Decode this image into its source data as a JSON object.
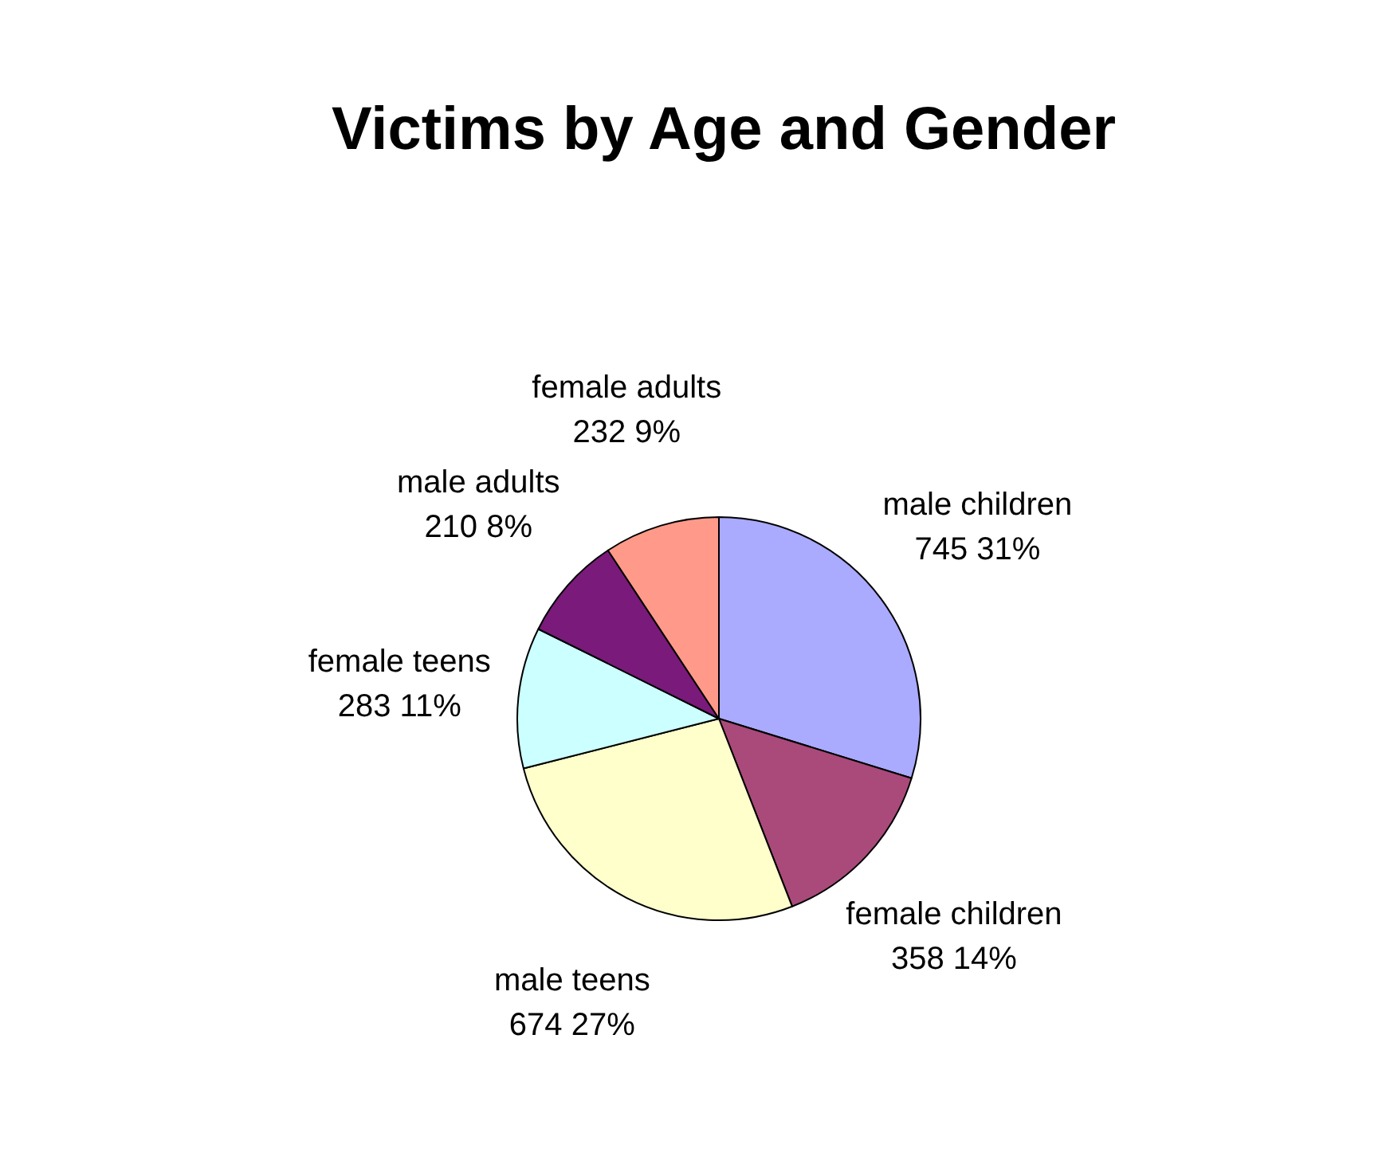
{
  "chart_data": {
    "type": "pie",
    "title": "Victims by Age and Gender",
    "categories": [
      "male children",
      "female children",
      "male teens",
      "female teens",
      "male adults",
      "female adults"
    ],
    "values": [
      745,
      358,
      674,
      283,
      210,
      232
    ],
    "value_labels": [
      "745 31%",
      "358 14%",
      "674 27%",
      "283 11%",
      "210 8%",
      "232 9%"
    ],
    "colors": [
      "#aaaaff",
      "#a94a7a",
      "#ffffcc",
      "#ccffff",
      "#7a1a7a",
      "#ff9a8a"
    ],
    "legend": false
  }
}
